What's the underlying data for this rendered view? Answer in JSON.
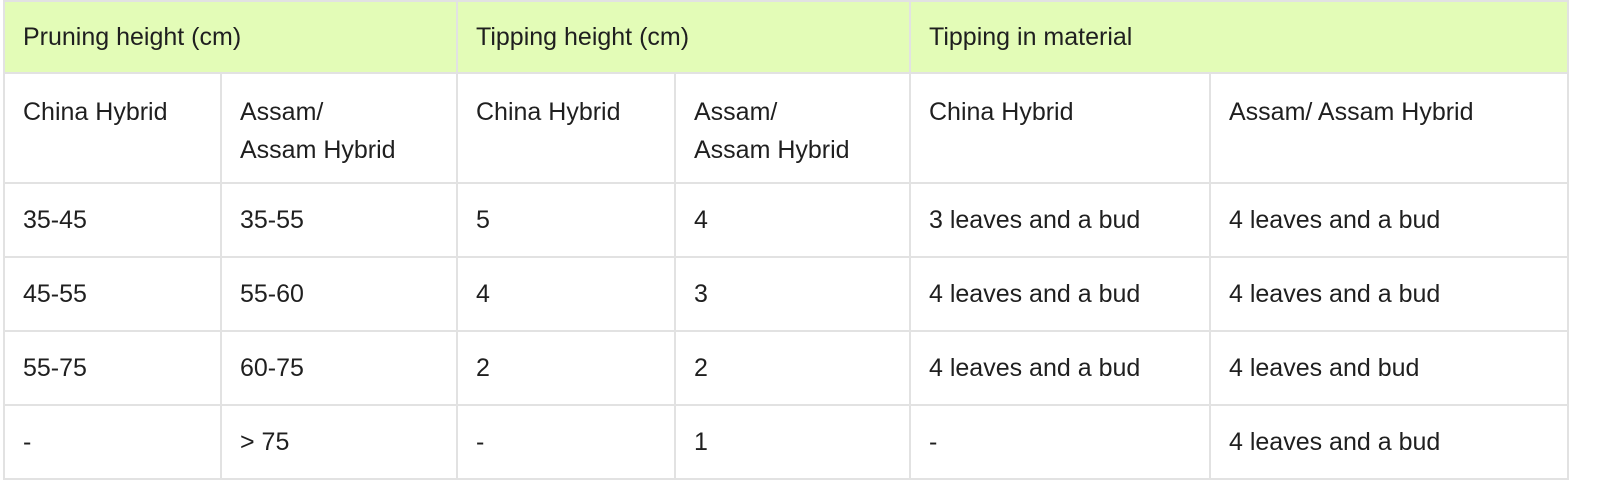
{
  "table": {
    "group_headers": [
      "Pruning height (cm)",
      "Tipping height (cm)",
      "Tipping in material"
    ],
    "sub_headers": [
      [
        "China Hybrid"
      ],
      [
        "Assam/",
        "Assam Hybrid"
      ],
      [
        "China Hybrid"
      ],
      [
        "Assam/",
        "Assam Hybrid"
      ],
      [
        "China Hybrid"
      ],
      [
        "Assam/ Assam Hybrid"
      ]
    ],
    "rows": [
      [
        "35-45",
        "35-55",
        "5",
        "4",
        "3 leaves and a bud",
        "4 leaves and a bud"
      ],
      [
        "45-55",
        "55-60",
        "4",
        "3",
        "4 leaves and a bud",
        "4 leaves and a bud"
      ],
      [
        "55-75",
        "60-75",
        "2",
        "2",
        "4 leaves and a bud",
        "4 leaves and bud"
      ],
      [
        "-",
        "> 75",
        "-",
        "1",
        "-",
        "4 leaves and a bud"
      ]
    ],
    "header_background": "#e3fcb7",
    "border_color": "#e2e2e2"
  }
}
